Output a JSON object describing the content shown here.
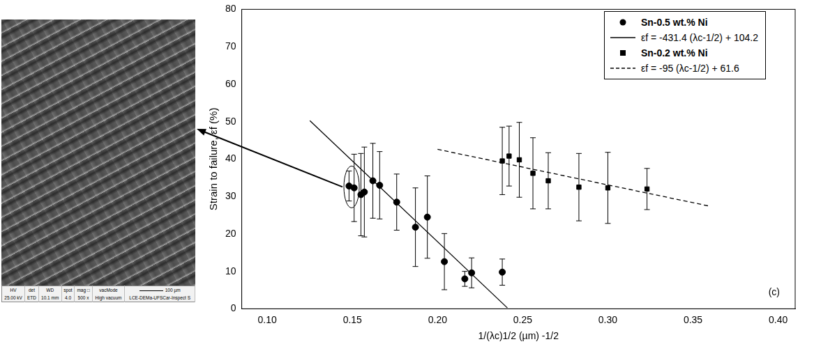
{
  "chart_data": {
    "type": "scatter",
    "x_label": "1/(λc)1/2 (µm) -1/2",
    "y_label": "Strain to failure, εf (%)",
    "xlim": [
      0.085,
      0.41
    ],
    "xticks": [
      {
        "value": 0.1,
        "label": "0.10"
      },
      {
        "value": 0.15,
        "label": "0.15"
      },
      {
        "value": 0.2,
        "label": "0.20"
      },
      {
        "value": 0.25,
        "label": "0.25"
      },
      {
        "value": 0.3,
        "label": "0.30"
      },
      {
        "value": 0.35,
        "label": "0.35"
      },
      {
        "value": 0.4,
        "label": "0.40"
      }
    ],
    "ylim": [
      0,
      80
    ],
    "yticks": [
      0,
      10,
      20,
      30,
      40,
      50,
      60,
      70,
      80
    ],
    "grid": false,
    "legend": "upper right",
    "annotations": [
      {
        "text": "(c)"
      }
    ],
    "series": [
      {
        "name": "Sn-0.5 wt.% Ni",
        "type": "scatter",
        "marker": "circle",
        "color": "#000000",
        "x": [
          0.148,
          0.151,
          0.155,
          0.157,
          0.162,
          0.166,
          0.176,
          0.187,
          0.194,
          0.204,
          0.216,
          0.22,
          0.238
        ],
        "values": [
          32.8,
          32.3,
          30.5,
          31.2,
          34.2,
          33.0,
          28.5,
          21.8,
          24.5,
          12.6,
          8.0,
          9.6,
          9.8
        ],
        "errors": [
          4,
          9,
          11,
          12,
          10,
          9,
          7.5,
          10.5,
          11,
          7.5,
          2,
          4,
          3.5
        ]
      },
      {
        "name": "εf = -431.4 (λc-1/2) + 104.2",
        "type": "line",
        "line_style": "solid",
        "color": "#000000",
        "slope": -431.4,
        "intercept": 104.2,
        "x": [
          0.125,
          0.241
        ]
      },
      {
        "name": "Sn-0.2 wt.% Ni",
        "type": "scatter",
        "marker": "square",
        "color": "#000000",
        "x": [
          0.238,
          0.242,
          0.248,
          0.256,
          0.265,
          0.283,
          0.3,
          0.323
        ],
        "values": [
          39.5,
          40.8,
          39.8,
          36.2,
          34.2,
          32.5,
          32.3,
          32.0
        ],
        "errors": [
          9,
          8,
          10,
          9.5,
          7.5,
          9,
          9.5,
          5.5
        ]
      },
      {
        "name": "εf = -95 (λc-1/2) + 61.6",
        "type": "line",
        "line_style": "dashed",
        "color": "#000000",
        "slope": -95,
        "intercept": 61.6,
        "x": [
          0.2,
          0.36
        ]
      }
    ]
  },
  "image": {
    "info_labels": [
      "HV",
      "det",
      "WD",
      "spot",
      "mag □",
      "vacMode"
    ],
    "info_values": [
      "25.00 kV",
      "ETD",
      "10.1 mm",
      "4.0",
      "500 x",
      "High vacuum"
    ],
    "scale_bar": "100 µm",
    "footer": "LCE-DEMa-UFSCar-Inspect S"
  }
}
